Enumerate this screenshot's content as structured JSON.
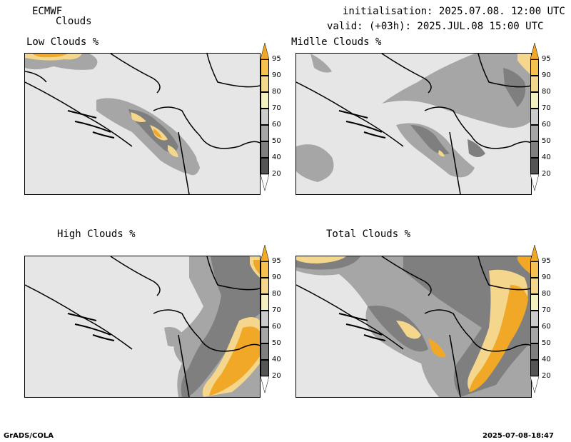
{
  "header": {
    "model": "ECMWF",
    "product": "Clouds",
    "init": "initialisation: 2025.07.08. 12:00 UTC",
    "valid": "valid: (+03h): 2025.JUL.08 15:00 UTC"
  },
  "panels": [
    {
      "title": "Low Clouds %"
    },
    {
      "title": "Midlle Clouds %"
    },
    {
      "title": "High Clouds %"
    },
    {
      "title": "Total Clouds %"
    }
  ],
  "colorbar": {
    "ticks": [
      "95",
      "90",
      "80",
      "70",
      "60",
      "50",
      "40",
      "20"
    ],
    "colors": [
      "#f0a826",
      "#f5c250",
      "#f4d68c",
      "#f4f0c0",
      "#cccccc",
      "#a6a6a6",
      "#7f7f7f",
      "#555555",
      "#ffffff"
    ]
  },
  "footer": {
    "left": "GrADS/COLA",
    "right": "2025-07-08-18:47"
  }
}
